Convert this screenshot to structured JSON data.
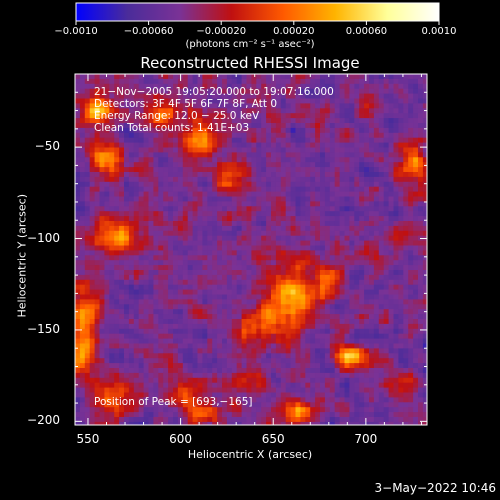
{
  "chart_data": {
    "type": "heatmap",
    "title": "Reconstructed RHESSI Image",
    "xlabel": "Heliocentric X (arcsec)",
    "ylabel": "Heliocentric Y (arcsec)",
    "xlim": [
      543,
      733
    ],
    "ylim": [
      -202,
      -10
    ],
    "x_ticks": [
      550,
      600,
      650,
      700
    ],
    "y_ticks": [
      -50,
      -100,
      -150,
      -200
    ],
    "colorbar": {
      "range": [
        -0.001,
        0.001
      ],
      "ticks": [
        "−0.0010",
        "−0.00060",
        "−0.00020",
        "0.00020",
        "0.00060",
        "0.0010"
      ],
      "tick_values": [
        -0.001,
        -0.0006,
        -0.0002,
        0.0002,
        0.0006,
        0.001
      ],
      "units": "(photons cm⁻² s⁻¹ asec⁻²)",
      "colormap": [
        "#0000ff",
        "#4b2c9a",
        "#7a3296",
        "#c01010",
        "#ff5a00",
        "#ffb400",
        "#ffff99",
        "#ffffff"
      ]
    },
    "sources": [
      {
        "x": 660,
        "y": -132,
        "amp": 0.00095,
        "sx": 9,
        "sy": 12
      },
      {
        "x": 693,
        "y": -165,
        "amp": 0.001,
        "sx": 7,
        "sy": 5
      },
      {
        "x": 640,
        "y": -148,
        "amp": 0.0006,
        "sx": 8,
        "sy": 6
      },
      {
        "x": 680,
        "y": -120,
        "amp": 0.0005,
        "sx": 6,
        "sy": 6
      },
      {
        "x": 565,
        "y": -98,
        "amp": 0.00085,
        "sx": 8,
        "sy": 7
      },
      {
        "x": 560,
        "y": -55,
        "amp": 0.0007,
        "sx": 7,
        "sy": 6
      },
      {
        "x": 555,
        "y": -30,
        "amp": 0.0009,
        "sx": 6,
        "sy": 6
      },
      {
        "x": 610,
        "y": -45,
        "amp": 0.0008,
        "sx": 7,
        "sy": 8
      },
      {
        "x": 628,
        "y": -65,
        "amp": 0.0006,
        "sx": 6,
        "sy": 6
      },
      {
        "x": 592,
        "y": -30,
        "amp": 0.0006,
        "sx": 7,
        "sy": 6
      },
      {
        "x": 548,
        "y": -150,
        "amp": 0.0007,
        "sx": 5,
        "sy": 18
      },
      {
        "x": 565,
        "y": -185,
        "amp": 0.0006,
        "sx": 7,
        "sy": 8
      },
      {
        "x": 603,
        "y": -183,
        "amp": 0.0005,
        "sx": 6,
        "sy": 6
      },
      {
        "x": 612,
        "y": -195,
        "amp": 0.0007,
        "sx": 6,
        "sy": 4
      },
      {
        "x": 665,
        "y": -195,
        "amp": 0.00075,
        "sx": 7,
        "sy": 4
      },
      {
        "x": 635,
        "y": -178,
        "amp": 0.0004,
        "sx": 5,
        "sy": 5
      },
      {
        "x": 725,
        "y": -60,
        "amp": 0.0006,
        "sx": 5,
        "sy": 8
      },
      {
        "x": 700,
        "y": -30,
        "amp": 0.00035,
        "sx": 5,
        "sy": 5
      },
      {
        "x": 720,
        "y": -180,
        "amp": 0.00035,
        "sx": 5,
        "sy": 6
      }
    ],
    "annotations": {
      "time": "21−Nov−2005 19:05:20.000 to 19:07:16.000",
      "detectors": "Detectors: 3F 4F 5F 6F 7F 8F, Att 0",
      "energy": "Energy Range: 12.0 − 25.0 keV",
      "clean": "Clean    Total counts: 1.41E+03",
      "peak": "Position of Peak = [693,−165]"
    },
    "plot_date": "3−May−2022 10:46"
  }
}
